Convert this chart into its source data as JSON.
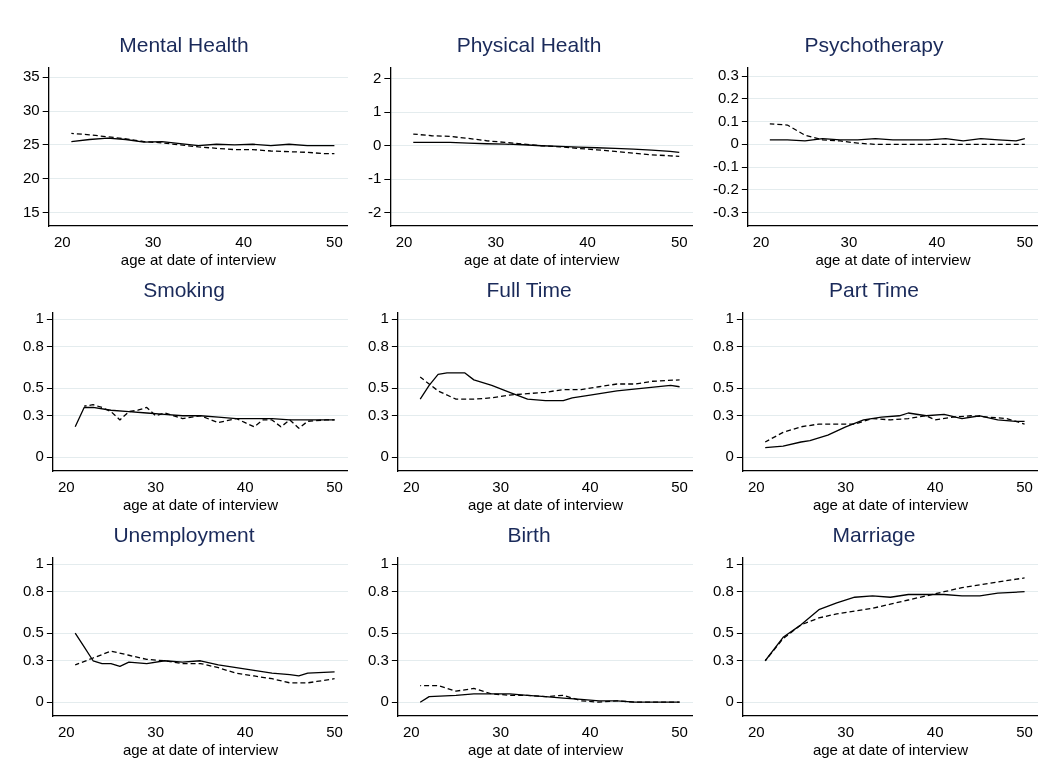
{
  "chart_data": [
    {
      "type": "line",
      "title": "Mental Health",
      "xlabel": "age at date of interview",
      "xlim": [
        18.5,
        51.5
      ],
      "xticks": [
        20,
        30,
        40,
        50
      ],
      "ylim": [
        13,
        36.5
      ],
      "yticks": [
        15,
        20,
        25,
        30,
        35
      ],
      "grid": "y",
      "series": [
        {
          "color": "#000000",
          "line_style": "solid",
          "x": [
            21,
            23,
            25,
            27,
            29,
            31,
            33,
            35,
            37,
            39,
            41,
            43,
            45,
            47,
            49,
            50
          ],
          "values": [
            25.5,
            25.8,
            26,
            25.8,
            25.4,
            25.5,
            25.2,
            24.9,
            25.1,
            25,
            25.1,
            24.9,
            25.1,
            24.9,
            24.9,
            24.9
          ]
        },
        {
          "color": "#000000",
          "line_style": "dashed",
          "x": [
            21,
            23,
            25,
            27,
            29,
            31,
            33,
            35,
            37,
            39,
            41,
            43,
            45,
            47,
            49,
            50
          ],
          "values": [
            26.7,
            26.5,
            26.2,
            25.9,
            25.5,
            25.3,
            25,
            24.7,
            24.5,
            24.3,
            24.3,
            24.1,
            24,
            23.9,
            23.7,
            23.7
          ]
        }
      ]
    },
    {
      "type": "line",
      "title": "Physical Health",
      "xlabel": "age at date of interview",
      "xlim": [
        18.5,
        51.5
      ],
      "xticks": [
        20,
        30,
        40,
        50
      ],
      "ylim": [
        -2.4,
        2.35
      ],
      "yticks": [
        -2,
        -1,
        0,
        1,
        2
      ],
      "grid": "y",
      "series": [
        {
          "color": "#000000",
          "line_style": "solid",
          "x": [
            21,
            23,
            25,
            27,
            29,
            31,
            33,
            35,
            37,
            39,
            41,
            43,
            45,
            47,
            49,
            50
          ],
          "values": [
            0.1,
            0.1,
            0.1,
            0.08,
            0.06,
            0.05,
            0.03,
            0,
            -0.02,
            -0.04,
            -0.06,
            -0.08,
            -0.1,
            -0.13,
            -0.17,
            -0.2
          ]
        },
        {
          "color": "#000000",
          "line_style": "dashed",
          "x": [
            21,
            23,
            25,
            27,
            29,
            31,
            33,
            35,
            37,
            39,
            41,
            43,
            45,
            47,
            49,
            50
          ],
          "values": [
            0.35,
            0.3,
            0.28,
            0.22,
            0.15,
            0.1,
            0.05,
            0,
            -0.03,
            -0.08,
            -0.12,
            -0.17,
            -0.22,
            -0.27,
            -0.3,
            -0.32
          ]
        }
      ]
    },
    {
      "type": "line",
      "title": "Psychotherapy",
      "xlabel": "age at date of interview",
      "xlim": [
        18.5,
        51.5
      ],
      "xticks": [
        20,
        30,
        40,
        50
      ],
      "ylim": [
        -0.36,
        0.34
      ],
      "yticks": [
        -0.3,
        -0.2,
        -0.1,
        0,
        0.1,
        0.2,
        0.3
      ],
      "grid": "y",
      "series": [
        {
          "color": "#000000",
          "line_style": "solid",
          "x": [
            21,
            23,
            25,
            27,
            29,
            31,
            33,
            35,
            37,
            39,
            41,
            43,
            45,
            47,
            49,
            50
          ],
          "values": [
            0.02,
            0.02,
            0.015,
            0.025,
            0.02,
            0.02,
            0.025,
            0.02,
            0.02,
            0.02,
            0.025,
            0.015,
            0.025,
            0.02,
            0.015,
            0.025
          ]
        },
        {
          "color": "#000000",
          "line_style": "dashed",
          "x": [
            21,
            23,
            25,
            27,
            29,
            31,
            33,
            35,
            37,
            39,
            41,
            43,
            45,
            47,
            49,
            50
          ],
          "values": [
            0.09,
            0.085,
            0.04,
            0.02,
            0.015,
            0.005,
            0,
            0,
            0,
            0,
            0,
            0,
            0,
            0,
            0,
            0
          ]
        }
      ]
    },
    {
      "type": "line",
      "title": "Smoking",
      "xlabel": "age at date of interview",
      "xlim": [
        18.5,
        51.5
      ],
      "xticks": [
        20,
        30,
        40,
        50
      ],
      "ylim": [
        -0.1,
        1.05
      ],
      "yticks": [
        0,
        0.3,
        0.5,
        0.8,
        1
      ],
      "grid": "y",
      "series": [
        {
          "color": "#000000",
          "line_style": "solid",
          "x": [
            21,
            22,
            23,
            25,
            27,
            29,
            31,
            33,
            35,
            37,
            39,
            41,
            43,
            45,
            47,
            49,
            50
          ],
          "values": [
            0.22,
            0.36,
            0.36,
            0.34,
            0.33,
            0.32,
            0.31,
            0.3,
            0.3,
            0.29,
            0.28,
            0.28,
            0.28,
            0.27,
            0.27,
            0.27,
            0.27
          ]
        },
        {
          "color": "#000000",
          "line_style": "dashed",
          "x": [
            22,
            23,
            24,
            25,
            26,
            27,
            28,
            29,
            30,
            31,
            33,
            35,
            37,
            39,
            40,
            41,
            42,
            43,
            44,
            45,
            46,
            47,
            49,
            50
          ],
          "values": [
            0.37,
            0.38,
            0.36,
            0.33,
            0.27,
            0.33,
            0.34,
            0.36,
            0.3,
            0.32,
            0.28,
            0.3,
            0.25,
            0.28,
            0.25,
            0.22,
            0.27,
            0.27,
            0.22,
            0.27,
            0.21,
            0.26,
            0.27,
            0.27
          ]
        }
      ]
    },
    {
      "type": "line",
      "title": "Full Time",
      "xlabel": "age at date of interview",
      "xlim": [
        18.5,
        51.5
      ],
      "xticks": [
        20,
        30,
        40,
        50
      ],
      "ylim": [
        -0.1,
        1.05
      ],
      "yticks": [
        0,
        0.3,
        0.5,
        0.8,
        1
      ],
      "grid": "y",
      "series": [
        {
          "color": "#000000",
          "line_style": "solid",
          "x": [
            21,
            22,
            23,
            24,
            26,
            27,
            29,
            31,
            33,
            35,
            37,
            38,
            40,
            43,
            46,
            49,
            50
          ],
          "values": [
            0.42,
            0.52,
            0.6,
            0.61,
            0.61,
            0.56,
            0.52,
            0.47,
            0.42,
            0.41,
            0.41,
            0.43,
            0.45,
            0.48,
            0.5,
            0.52,
            0.51
          ]
        },
        {
          "color": "#000000",
          "line_style": "dashed",
          "x": [
            21,
            23,
            25,
            27,
            29,
            31,
            33,
            35,
            37,
            39,
            41,
            43,
            45,
            47,
            50
          ],
          "values": [
            0.58,
            0.48,
            0.42,
            0.42,
            0.43,
            0.45,
            0.46,
            0.47,
            0.49,
            0.49,
            0.51,
            0.53,
            0.53,
            0.55,
            0.56
          ]
        }
      ]
    },
    {
      "type": "line",
      "title": "Part Time",
      "xlabel": "age at date of interview",
      "xlim": [
        18.5,
        51.5
      ],
      "xticks": [
        20,
        30,
        40,
        50
      ],
      "ylim": [
        -0.1,
        1.05
      ],
      "yticks": [
        0,
        0.3,
        0.5,
        0.8,
        1
      ],
      "grid": "y",
      "series": [
        {
          "color": "#000000",
          "line_style": "solid",
          "x": [
            21,
            23,
            25,
            26,
            28,
            30,
            32,
            34,
            36,
            37,
            39,
            41,
            43,
            45,
            47,
            49,
            50
          ],
          "values": [
            0.07,
            0.08,
            0.11,
            0.12,
            0.16,
            0.22,
            0.27,
            0.29,
            0.3,
            0.32,
            0.3,
            0.31,
            0.28,
            0.3,
            0.27,
            0.26,
            0.26
          ]
        },
        {
          "color": "#000000",
          "line_style": "dashed",
          "x": [
            21,
            23,
            25,
            27,
            29,
            31,
            33,
            35,
            37,
            39,
            40,
            42,
            44,
            46,
            48,
            50
          ],
          "values": [
            0.11,
            0.18,
            0.22,
            0.24,
            0.24,
            0.24,
            0.28,
            0.27,
            0.28,
            0.3,
            0.27,
            0.29,
            0.3,
            0.29,
            0.28,
            0.24
          ]
        }
      ]
    },
    {
      "type": "line",
      "title": "Unemployment",
      "xlabel": "age at date of interview",
      "xlim": [
        18.5,
        51.5
      ],
      "xticks": [
        20,
        30,
        40,
        50
      ],
      "ylim": [
        -0.1,
        1.05
      ],
      "yticks": [
        0,
        0.3,
        0.5,
        0.8,
        1
      ],
      "grid": "y",
      "series": [
        {
          "color": "#000000",
          "line_style": "solid",
          "x": [
            21,
            22,
            23,
            24,
            25,
            26,
            27,
            29,
            31,
            33,
            35,
            37,
            39,
            41,
            43,
            45,
            46,
            47,
            50
          ],
          "values": [
            0.5,
            0.4,
            0.3,
            0.28,
            0.28,
            0.26,
            0.29,
            0.28,
            0.3,
            0.29,
            0.3,
            0.27,
            0.25,
            0.23,
            0.21,
            0.2,
            0.19,
            0.21,
            0.22
          ]
        },
        {
          "color": "#000000",
          "line_style": "dashed",
          "x": [
            21,
            23,
            25,
            27,
            29,
            31,
            33,
            35,
            37,
            39,
            41,
            43,
            45,
            47,
            48,
            50
          ],
          "values": [
            0.27,
            0.32,
            0.37,
            0.34,
            0.31,
            0.3,
            0.28,
            0.28,
            0.25,
            0.21,
            0.19,
            0.17,
            0.14,
            0.14,
            0.15,
            0.17
          ]
        }
      ]
    },
    {
      "type": "line",
      "title": "Birth",
      "xlabel": "age at date of interview",
      "xlim": [
        18.5,
        51.5
      ],
      "xticks": [
        20,
        30,
        40,
        50
      ],
      "ylim": [
        -0.1,
        1.05
      ],
      "yticks": [
        0,
        0.3,
        0.5,
        0.8,
        1
      ],
      "grid": "y",
      "series": [
        {
          "color": "#000000",
          "line_style": "solid",
          "x": [
            21,
            22,
            25,
            27,
            29,
            31,
            33,
            35,
            37,
            39,
            41,
            43,
            45,
            50
          ],
          "values": [
            0,
            0.04,
            0.05,
            0.06,
            0.06,
            0.06,
            0.05,
            0.04,
            0.03,
            0.02,
            0.01,
            0.01,
            0,
            0
          ]
        },
        {
          "color": "#000000",
          "line_style": "dashed",
          "x": [
            21,
            23,
            25,
            27,
            29,
            31,
            33,
            35,
            37,
            39,
            41,
            43,
            45,
            50
          ],
          "values": [
            0.12,
            0.12,
            0.08,
            0.1,
            0.06,
            0.05,
            0.05,
            0.04,
            0.05,
            0.01,
            0,
            0.01,
            0,
            0
          ]
        }
      ]
    },
    {
      "type": "line",
      "title": "Marriage",
      "xlabel": "age at date of interview",
      "xlim": [
        18.5,
        51.5
      ],
      "xticks": [
        20,
        30,
        40,
        50
      ],
      "ylim": [
        -0.1,
        1.05
      ],
      "yticks": [
        0,
        0.3,
        0.5,
        0.8,
        1
      ],
      "grid": "y",
      "series": [
        {
          "color": "#000000",
          "line_style": "solid",
          "x": [
            21,
            23,
            25,
            27,
            29,
            31,
            33,
            35,
            37,
            39,
            41,
            43,
            45,
            47,
            50
          ],
          "values": [
            0.3,
            0.47,
            0.56,
            0.67,
            0.72,
            0.76,
            0.77,
            0.76,
            0.78,
            0.78,
            0.78,
            0.77,
            0.77,
            0.79,
            0.8
          ]
        },
        {
          "color": "#000000",
          "line_style": "dashed",
          "x": [
            21,
            23,
            25,
            27,
            29,
            31,
            33,
            35,
            37,
            39,
            41,
            43,
            45,
            47,
            50
          ],
          "values": [
            0.3,
            0.46,
            0.56,
            0.61,
            0.64,
            0.66,
            0.68,
            0.71,
            0.74,
            0.77,
            0.8,
            0.83,
            0.85,
            0.87,
            0.9
          ]
        }
      ]
    }
  ]
}
